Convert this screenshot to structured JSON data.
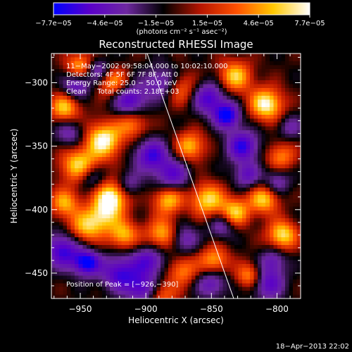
{
  "chart_data": {
    "type": "heatmap",
    "title": "Reconstructed RHESSI Image",
    "xlabel": "Heliocentric X (arcsec)",
    "ylabel": "Heliocentric Y (arcsec)",
    "xlim": [
      -972,
      -782
    ],
    "ylim": [
      -470,
      -277
    ],
    "xticks": [
      -950,
      -900,
      -850,
      -800
    ],
    "xtick_labels": [
      "−950",
      "−900",
      "−850",
      "−800"
    ],
    "yticks": [
      -300,
      -350,
      -400,
      -450
    ],
    "ytick_labels": [
      "−300",
      "−350",
      "−400",
      "−450"
    ],
    "colorbar": {
      "min": -7.7e-05,
      "max": 7.7e-05,
      "tick_labels": [
        "−7.7e−05",
        "−4.6e−05",
        "−1.5e−05",
        "1.5e−05",
        "4.6e−05",
        "7.7e−05"
      ],
      "unit_label": "(photons cm⁻² s⁻¹ asec⁻²)",
      "colormap": [
        "#0000ff",
        "#5a00c8",
        "#6e28a0",
        "#000000",
        "#b41400",
        "#ff5000",
        "#ffc800",
        "#ffffff"
      ]
    },
    "annotations": [
      "11−May−2002 09:58:04.000 to 10:02:10.000",
      "Detectors: 4F 5F 6F 7F 8F, Att 0",
      "Energy Range: 25.0 − 50.0 keV",
      "Clean     Total counts: 2.18E+03"
    ],
    "peak_label": "Position of Peak = [−926,−390]",
    "peak_position": [
      -926,
      -390
    ],
    "limb_line": [
      [
        -899,
        -277
      ],
      [
        -833,
        -470
      ]
    ],
    "blobs": [
      {
        "x": -949,
        "y": -287,
        "a": 0.8,
        "s": 8
      },
      {
        "x": -925,
        "y": -300,
        "a": 0.7,
        "s": 8
      },
      {
        "x": -962,
        "y": -320,
        "a": 0.8,
        "s": 8
      },
      {
        "x": -932,
        "y": -345,
        "a": 1.0,
        "s": 10
      },
      {
        "x": -910,
        "y": -332,
        "a": 0.6,
        "s": 8
      },
      {
        "x": -951,
        "y": -365,
        "a": 0.85,
        "s": 10
      },
      {
        "x": -962,
        "y": -395,
        "a": 0.7,
        "s": 8
      },
      {
        "x": -926,
        "y": -390,
        "a": 1.0,
        "s": 9
      },
      {
        "x": -933,
        "y": -405,
        "a": 0.7,
        "s": 9
      },
      {
        "x": -947,
        "y": -415,
        "a": 0.7,
        "s": 9
      },
      {
        "x": -917,
        "y": -420,
        "a": 0.75,
        "s": 8
      },
      {
        "x": -887,
        "y": -420,
        "a": 0.8,
        "s": 9
      },
      {
        "x": -883,
        "y": -392,
        "a": 0.8,
        "s": 8
      },
      {
        "x": -853,
        "y": -392,
        "a": 0.85,
        "s": 9
      },
      {
        "x": -832,
        "y": -402,
        "a": 0.8,
        "s": 8
      },
      {
        "x": -810,
        "y": -392,
        "a": 0.8,
        "s": 8
      },
      {
        "x": -796,
        "y": -420,
        "a": 0.9,
        "s": 8
      },
      {
        "x": -808,
        "y": -317,
        "a": 1.0,
        "s": 9
      },
      {
        "x": -832,
        "y": -295,
        "a": 0.8,
        "s": 9
      },
      {
        "x": -797,
        "y": -358,
        "a": 0.6,
        "s": 8
      },
      {
        "x": -866,
        "y": -350,
        "a": 0.75,
        "s": 8
      },
      {
        "x": -873,
        "y": -305,
        "a": 0.55,
        "s": 9
      },
      {
        "x": -848,
        "y": -440,
        "a": 0.7,
        "s": 8
      },
      {
        "x": -872,
        "y": -448,
        "a": 0.6,
        "s": 8
      },
      {
        "x": -821,
        "y": -452,
        "a": 0.7,
        "s": 7
      },
      {
        "x": -887,
        "y": -467,
        "a": 0.5,
        "s": 8
      },
      {
        "x": -945,
        "y": -442,
        "a": -1.0,
        "s": 7
      },
      {
        "x": -938,
        "y": -290,
        "a": -0.7,
        "s": 7
      },
      {
        "x": -953,
        "y": -302,
        "a": -0.7,
        "s": 7
      },
      {
        "x": -912,
        "y": -314,
        "a": -0.8,
        "s": 9
      },
      {
        "x": -888,
        "y": -300,
        "a": -0.6,
        "s": 9
      },
      {
        "x": -838,
        "y": -326,
        "a": -1.0,
        "s": 7
      },
      {
        "x": -852,
        "y": -312,
        "a": -0.8,
        "s": 9
      },
      {
        "x": -826,
        "y": -350,
        "a": -0.85,
        "s": 9
      },
      {
        "x": -896,
        "y": -357,
        "a": -0.8,
        "s": 9
      },
      {
        "x": -880,
        "y": -373,
        "a": -0.7,
        "s": 9
      },
      {
        "x": -942,
        "y": -375,
        "a": -0.5,
        "s": 7
      },
      {
        "x": -963,
        "y": -432,
        "a": -0.85,
        "s": 10
      },
      {
        "x": -920,
        "y": -450,
        "a": -0.8,
        "s": 10
      },
      {
        "x": -897,
        "y": -440,
        "a": -0.7,
        "s": 9
      },
      {
        "x": -872,
        "y": -423,
        "a": -0.6,
        "s": 8
      },
      {
        "x": -842,
        "y": -413,
        "a": -0.5,
        "s": 7
      },
      {
        "x": -807,
        "y": -458,
        "a": -0.7,
        "s": 9
      },
      {
        "x": -803,
        "y": -440,
        "a": -0.5,
        "s": 7
      },
      {
        "x": -850,
        "y": -458,
        "a": -0.6,
        "s": 8
      },
      {
        "x": -903,
        "y": -462,
        "a": -0.7,
        "s": 8
      },
      {
        "x": -958,
        "y": -340,
        "a": -0.5,
        "s": 8
      },
      {
        "x": -790,
        "y": -335,
        "a": -0.4,
        "s": 7
      },
      {
        "x": -800,
        "y": -378,
        "a": -0.5,
        "s": 7
      },
      {
        "x": -913,
        "y": -380,
        "a": -0.45,
        "s": 7
      },
      {
        "x": -823,
        "y": -373,
        "a": -0.6,
        "s": 7
      }
    ]
  },
  "footer": {
    "timestamp": "18−Apr−2013 22:02"
  }
}
